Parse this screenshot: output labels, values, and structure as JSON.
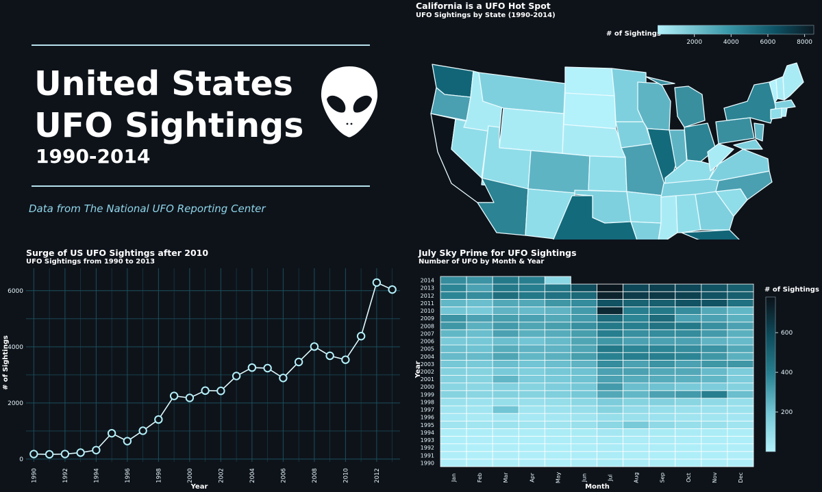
{
  "colors": {
    "background": "#0e131a",
    "accent_light": "#b3f1fb",
    "accent_dark": "#0d5365",
    "source_text": "#8fd6ea",
    "grid": "#1b4f5c"
  },
  "hero": {
    "title_line1": "United States",
    "title_line2": "UFO Sightings",
    "years": "1990-2014",
    "source": "Data from The National UFO Reporting Center",
    "icon": "alien-head-icon"
  },
  "map": {
    "title": "California is a UFO Hot Spot",
    "subtitle": "UFO Sightings by State (1990-2014)",
    "colorbar_label": "# of Sightings",
    "colorbar_ticks": [
      "2000",
      "4000",
      "6000",
      "8000"
    ],
    "colorbar_range": [
      0,
      8500
    ]
  },
  "line_chart": {
    "title": "Surge of US UFO Sightings after 2010",
    "subtitle": "UFO Sightings from 1990 to 2013"
  },
  "heatmap": {
    "title": "July Sky Prime for UFO Sightings",
    "subtitle": "Number of UFO by Month & Year"
  },
  "chart_data": [
    {
      "type": "line",
      "title": "Surge of US UFO Sightings after 2010",
      "subtitle": "UFO Sightings from 1990 to 2013",
      "xlabel": "Year",
      "ylabel": "# of Sightings",
      "x": [
        1990,
        1991,
        1992,
        1993,
        1994,
        1995,
        1996,
        1997,
        1998,
        1999,
        2000,
        2001,
        2002,
        2003,
        2004,
        2005,
        2006,
        2007,
        2008,
        2009,
        2010,
        2011,
        2012,
        2013
      ],
      "y": [
        180,
        170,
        180,
        230,
        320,
        920,
        640,
        1010,
        1410,
        2250,
        2180,
        2440,
        2430,
        2960,
        3260,
        3240,
        2890,
        3460,
        4010,
        3680,
        3540,
        4380,
        6290,
        6040
      ],
      "xticks": [
        "1990",
        "1992",
        "1994",
        "1996",
        "1998",
        "2000",
        "2002",
        "2004",
        "2006",
        "2008",
        "2010",
        "2012"
      ],
      "yticks": [
        "0",
        "2000",
        "4000",
        "6000"
      ],
      "xlim": [
        1989.5,
        2013.5
      ],
      "ylim": [
        -100,
        6800
      ],
      "grid": true
    },
    {
      "type": "heatmap",
      "title": "July Sky Prime for UFO Sightings",
      "subtitle": "Number of UFO by Month & Year",
      "xlabel": "Month",
      "ylabel": "Year",
      "colorbar_label": "# of Sightings",
      "colorbar_ticks": [
        "200",
        "400",
        "600"
      ],
      "zlim": [
        0,
        780
      ],
      "months": [
        "Jan",
        "Feb",
        "Mar",
        "Apr",
        "May",
        "Jun",
        "Jul",
        "Aug",
        "Sep",
        "Oct",
        "Nov",
        "Dec"
      ],
      "years": [
        "1990",
        "1991",
        "1992",
        "1993",
        "1994",
        "1995",
        "1996",
        "1997",
        "1998",
        "1999",
        "2000",
        "2001",
        "2002",
        "2003",
        "2004",
        "2005",
        "2006",
        "2007",
        "2008",
        "2009",
        "2010",
        "2011",
        "2012",
        "2013",
        "2014"
      ],
      "z": [
        [
          12,
          10,
          14,
          12,
          15,
          20,
          30,
          22,
          18,
          16,
          14,
          12
        ],
        [
          12,
          10,
          12,
          12,
          14,
          18,
          25,
          20,
          16,
          16,
          14,
          12
        ],
        [
          12,
          10,
          12,
          14,
          14,
          18,
          28,
          20,
          18,
          16,
          14,
          12
        ],
        [
          15,
          12,
          15,
          14,
          18,
          22,
          30,
          25,
          22,
          20,
          18,
          15
        ],
        [
          20,
          18,
          22,
          20,
          25,
          30,
          45,
          35,
          30,
          28,
          25,
          20
        ],
        [
          60,
          55,
          70,
          55,
          60,
          80,
          120,
          180,
          110,
          90,
          80,
          60
        ],
        [
          40,
          35,
          50,
          40,
          45,
          60,
          90,
          80,
          70,
          60,
          55,
          50
        ],
        [
          60,
          55,
          200,
          60,
          70,
          90,
          140,
          100,
          90,
          80,
          75,
          70
        ],
        [
          80,
          70,
          90,
          85,
          95,
          120,
          170,
          140,
          150,
          130,
          110,
          90
        ],
        [
          140,
          130,
          150,
          140,
          160,
          190,
          280,
          240,
          300,
          320,
          400,
          220
        ],
        [
          130,
          125,
          150,
          140,
          165,
          190,
          320,
          220,
          210,
          180,
          170,
          150
        ],
        [
          150,
          140,
          240,
          170,
          180,
          210,
          300,
          270,
          270,
          260,
          240,
          170
        ],
        [
          150,
          140,
          180,
          160,
          190,
          210,
          300,
          300,
          280,
          280,
          230,
          170
        ],
        [
          190,
          180,
          220,
          200,
          220,
          250,
          360,
          300,
          340,
          300,
          330,
          330
        ],
        [
          230,
          230,
          290,
          240,
          260,
          310,
          390,
          400,
          400,
          380,
          330,
          260
        ],
        [
          220,
          210,
          270,
          250,
          250,
          290,
          420,
          380,
          380,
          360,
          340,
          280
        ],
        [
          180,
          190,
          220,
          200,
          230,
          290,
          330,
          300,
          300,
          300,
          250,
          230
        ],
        [
          240,
          220,
          300,
          260,
          270,
          310,
          400,
          350,
          360,
          360,
          320,
          260
        ],
        [
          330,
          260,
          320,
          290,
          310,
          350,
          420,
          400,
          440,
          420,
          350,
          300
        ],
        [
          340,
          300,
          310,
          300,
          280,
          320,
          470,
          380,
          470,
          300,
          300,
          260
        ],
        [
          200,
          180,
          250,
          230,
          250,
          320,
          700,
          400,
          420,
          360,
          280,
          240
        ],
        [
          240,
          220,
          280,
          280,
          330,
          360,
          560,
          500,
          520,
          560,
          560,
          450
        ],
        [
          380,
          360,
          460,
          420,
          450,
          480,
          720,
          640,
          650,
          620,
          560,
          520
        ],
        [
          380,
          300,
          420,
          400,
          430,
          580,
          760,
          600,
          620,
          600,
          560,
          520
        ],
        [
          360,
          340,
          420,
          400,
          120,
          null,
          null,
          null,
          null,
          null,
          null,
          null
        ]
      ]
    },
    {
      "type": "choropleth",
      "title": "California is a UFO Hot Spot",
      "subtitle": "UFO Sightings by State (1990-2014)",
      "colorbar_label": "# of Sightings",
      "colorbar_ticks": [
        "2000",
        "4000",
        "6000",
        "8000"
      ],
      "zlim": [
        0,
        8500
      ],
      "values": {
        "CA": 8500,
        "WA": 3900,
        "FL": 3800,
        "TX": 3500,
        "NY": 2900,
        "AZ": 2400,
        "IL": 2400,
        "OH": 2200,
        "PA": 2100,
        "MI": 1900,
        "OR": 1700,
        "NC": 1600,
        "CO": 1500,
        "GA": 1300,
        "MO": 1300
      }
    }
  ]
}
